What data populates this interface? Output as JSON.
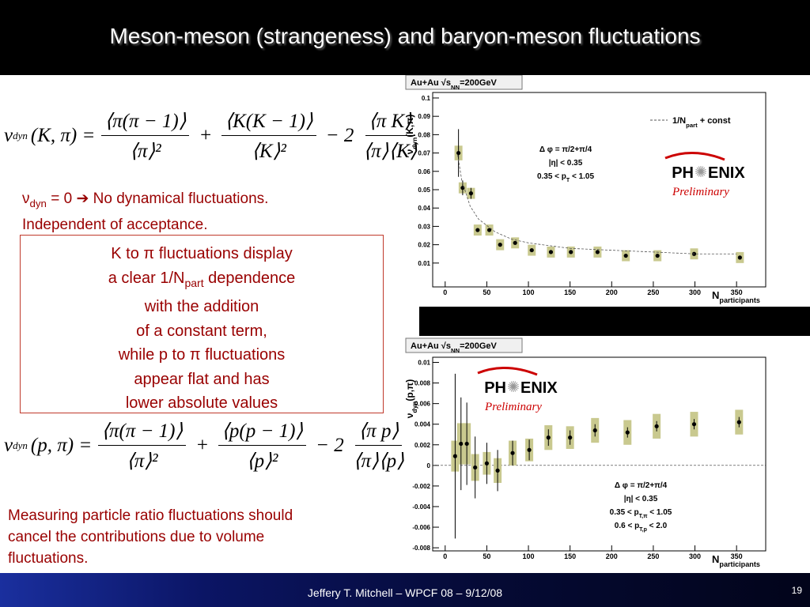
{
  "title": "Meson-meson (strangeness) and baryon-meson fluctuations",
  "formula_1": {
    "symbol": "ν",
    "subscript": "dyn",
    "args": "(K, π) =",
    "terms": [
      {
        "num": "⟨π(π − 1)⟩",
        "den": "⟨π⟩²"
      },
      {
        "sign": "+",
        "num": "⟨K(K − 1)⟩",
        "den": "⟨K⟩²"
      },
      {
        "sign": "− 2",
        "num": "⟨π K⟩",
        "den": "⟨π⟩⟨K⟩"
      }
    ]
  },
  "note": {
    "lines": [
      [
        "ν",
        {
          "sub": "dyn"
        },
        " = 0 ➔ No dynamical fluctuations."
      ],
      "Independent of acceptance."
    ]
  },
  "box": {
    "lines": [
      "K to π fluctuations display",
      [
        "a clear 1/N",
        {
          "sub": "part"
        },
        " dependence"
      ],
      "with the addition",
      "of a constant term,",
      "while p to π fluctuations",
      "appear flat and has",
      "lower absolute values"
    ]
  },
  "formula_2": {
    "symbol": "ν",
    "subscript": "dyn",
    "args": "(p, π) =",
    "terms": [
      {
        "num": "⟨π(π − 1)⟩",
        "den": "⟨π⟩²"
      },
      {
        "sign": "+",
        "num": "⟨p(p − 1)⟩",
        "den": "⟨p⟩²"
      },
      {
        "sign": "− 2",
        "num": "⟨π p⟩",
        "den": "⟨π⟩⟨p⟩"
      }
    ]
  },
  "bottom_text": {
    "lines": [
      "Measuring particle ratio fluctuations should",
      "cancel the contributions due to volume",
      "fluctuations."
    ]
  },
  "footer": {
    "text": "Jeffery T. Mitchell – WPCF 08 – 9/12/08",
    "page": "19"
  },
  "chart_data": [
    {
      "type": "scatter",
      "header": [
        "Au+Au √s",
        {
          "sub": "NN"
        },
        "=200GeV"
      ],
      "ylabel": [
        "ν",
        {
          "sub": "dyn"
        },
        "(K,π)"
      ],
      "xlabel": [
        "N",
        {
          "sub": "participants"
        }
      ],
      "xlim": [
        -15,
        385
      ],
      "ylim": [
        -0.003,
        0.103
      ],
      "xticks": [
        0,
        50,
        100,
        150,
        200,
        250,
        300,
        350
      ],
      "yticks": [
        0.01,
        0.02,
        0.03,
        0.04,
        0.05,
        0.06,
        0.07,
        0.08,
        0.09,
        0.1
      ],
      "zero_line": false,
      "series": [
        {
          "style": "points",
          "color": "#000000",
          "sys_color": "#c9c98f",
          "x": [
            16,
            21,
            31,
            39,
            53,
            66,
            84,
            104,
            127,
            151,
            183,
            217,
            255,
            299,
            354
          ],
          "values": [
            0.07,
            0.051,
            0.048,
            0.028,
            0.028,
            0.02,
            0.021,
            0.017,
            0.016,
            0.016,
            0.016,
            0.014,
            0.014,
            0.015,
            0.013
          ],
          "stat_errors": [
            0.013,
            0.004,
            0.003,
            0.001,
            0.001,
            0.001,
            0.001,
            0.0005,
            0.0005,
            0.0005,
            0.0005,
            0.0005,
            0.0005,
            0.0005,
            0.0005
          ],
          "sys_errors": [
            0.004,
            0.003,
            0.003,
            0.003,
            0.003,
            0.003,
            0.003,
            0.003,
            0.003,
            0.003,
            0.003,
            0.003,
            0.003,
            0.003,
            0.003
          ]
        },
        {
          "style": "dashed_line",
          "color": "#555555",
          "name": [
            "1/N",
            {
              "sub": "part"
            },
            " + const"
          ],
          "x": [
            15,
            20,
            30,
            40,
            60,
            80,
            100,
            150,
            200,
            250,
            300,
            350
          ],
          "values": [
            0.069,
            0.055,
            0.041,
            0.034,
            0.027,
            0.023,
            0.021,
            0.018,
            0.017,
            0.016,
            0.015,
            0.015
          ]
        }
      ],
      "annotations": [
        [
          "Δ φ = π/2+π/4"
        ],
        [
          "|η| < 0.35"
        ],
        [
          "0.35 < p",
          {
            "sub": "T"
          },
          " < 1.05"
        ]
      ],
      "logo": {
        "left": "PH",
        "right": "ENIX",
        "tag": "Preliminary"
      }
    },
    {
      "type": "scatter",
      "header": [
        "Au+Au √s",
        {
          "sub": "NN"
        },
        "=200GeV"
      ],
      "ylabel": [
        "ν",
        {
          "sub": "dyn"
        },
        "(p,π)"
      ],
      "xlabel": [
        "N",
        {
          "sub": "participants"
        }
      ],
      "xlim": [
        -15,
        385
      ],
      "ylim": [
        -0.0083,
        0.0105
      ],
      "xticks": [
        0,
        50,
        100,
        150,
        200,
        250,
        300,
        350
      ],
      "yticks": [
        -0.008,
        -0.006,
        -0.004,
        -0.002,
        0,
        0.002,
        0.004,
        0.006,
        0.008,
        0.01
      ],
      "zero_line": true,
      "series": [
        {
          "style": "points",
          "color": "#000000",
          "sys_color": "#c9c98f",
          "x": [
            12,
            19,
            26,
            36,
            50,
            63,
            81,
            101,
            124,
            150,
            180,
            219,
            254,
            299,
            353
          ],
          "values": [
            0.0009,
            0.0021,
            0.0021,
            -0.0002,
            0.0002,
            -0.0005,
            0.0012,
            0.0015,
            0.0027,
            0.0027,
            0.0034,
            0.0032,
            0.0038,
            0.004,
            0.0042
          ],
          "stat_errors": [
            0.008,
            0.0045,
            0.004,
            0.003,
            0.002,
            0.002,
            0.0012,
            0.001,
            0.0008,
            0.0007,
            0.0006,
            0.0005,
            0.0005,
            0.0005,
            0.0005
          ],
          "sys_errors": [
            0.0015,
            0.002,
            0.002,
            0.0013,
            0.0011,
            0.0012,
            0.0012,
            0.0011,
            0.0012,
            0.0011,
            0.0012,
            0.0012,
            0.0012,
            0.0012,
            0.0012
          ]
        }
      ],
      "annotations": [
        [
          "Δ φ = π/2+π/4"
        ],
        [
          "|η| < 0.35"
        ],
        [
          "0.35 < p",
          {
            "sub": "T,π"
          },
          " < 1.05"
        ],
        [
          "0.6 < p",
          {
            "sub": "T,p"
          },
          " < 2.0"
        ]
      ],
      "logo": {
        "left": "PH",
        "right": "ENIX",
        "tag": "Preliminary"
      }
    }
  ]
}
